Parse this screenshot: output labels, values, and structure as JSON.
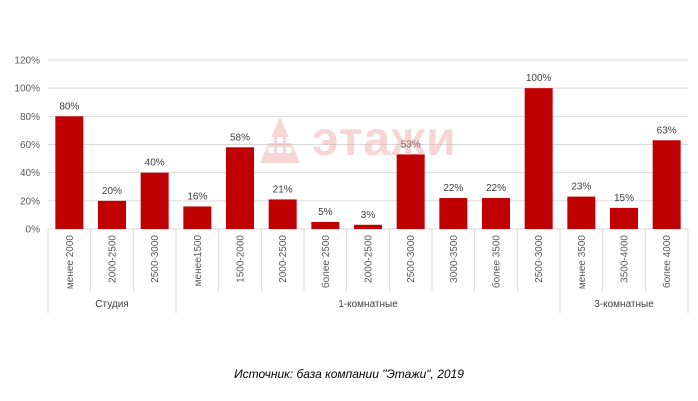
{
  "colors": {
    "bar": "#c00000",
    "grid": "#d9d9d9",
    "watermark": "#f1a3a3"
  },
  "watermark": {
    "text": "этажи",
    "icon": "building-logo-icon"
  },
  "source_caption": "Источник: база компании \"Этажи\", 2019",
  "chart_data": {
    "type": "bar",
    "title": "",
    "xlabel": "",
    "ylabel": "",
    "ylim": [
      0,
      120
    ],
    "yticks": [
      "0%",
      "20%",
      "40%",
      "60%",
      "80%",
      "100%",
      "120%"
    ],
    "grid": true,
    "legend": "none",
    "groups": [
      {
        "name": "Студия",
        "count": 3
      },
      {
        "name": "1-комнатные",
        "count": 9
      },
      {
        "name": "3-комнатные",
        "count": 3
      }
    ],
    "categories": [
      "менее 2000",
      "2000-2500",
      "2500-3000",
      "менее1500",
      "1500-2000",
      "2000-2500",
      "более 2500",
      "2000-2500",
      "2500-3000",
      "3000-3500",
      "более 3500",
      "2500-3000",
      "менее 3500",
      "3500-4000",
      "более 4000"
    ],
    "values": [
      80,
      20,
      40,
      16,
      58,
      21,
      5,
      3,
      53,
      22,
      22,
      100,
      23,
      15,
      63
    ],
    "value_labels": [
      "80%",
      "20%",
      "40%",
      "16%",
      "58%",
      "21%",
      "5%",
      "3%",
      "53%",
      "22%",
      "22%",
      "100%",
      "23%",
      "15%",
      "63%"
    ]
  }
}
